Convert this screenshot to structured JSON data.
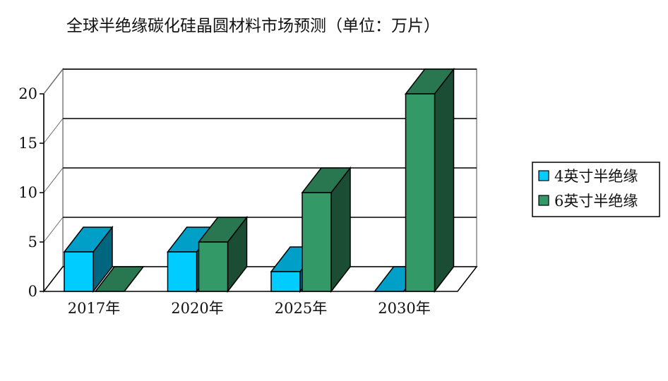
{
  "chart_data": {
    "type": "bar",
    "title": "全球半绝缘碳化硅晶圆材料市场预测（单位：万片）",
    "categories": [
      "2017年",
      "2020年",
      "2025年",
      "2030年"
    ],
    "series": [
      {
        "name": "4英寸半绝缘",
        "values": [
          4,
          4,
          2,
          0
        ],
        "color": "#00ccff"
      },
      {
        "name": "6英寸半绝缘",
        "values": [
          0,
          5,
          10,
          20
        ],
        "color": "#339966"
      }
    ],
    "y_ticks": [
      "0",
      "5",
      "10",
      "15",
      "20"
    ],
    "ylim": [
      0,
      20
    ],
    "grid": true,
    "style": "3d-column",
    "legend_position": "right"
  }
}
